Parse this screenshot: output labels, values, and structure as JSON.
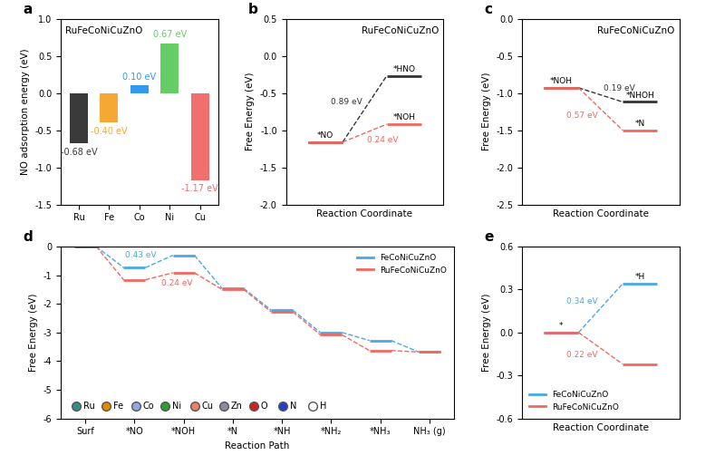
{
  "chart_data": [
    {
      "panel": "a",
      "type": "bar",
      "title": "RuFeCoNiCuZnO",
      "ylabel": "NO adsorption energy (eV)",
      "categories": [
        "Ru",
        "Fe",
        "Co",
        "Ni",
        "Cu"
      ],
      "values": [
        -0.68,
        -0.4,
        0.1,
        0.67,
        -1.17
      ],
      "value_labels": [
        "-0.68 eV",
        "-0.40 eV",
        "0.10 eV",
        "0.67 eV",
        "-1.17 eV"
      ],
      "colors": [
        "#3a3a3a",
        "#f5a833",
        "#3399ee",
        "#66cc66",
        "#f07070"
      ],
      "data_labels": true,
      "ylim": [
        -1.5,
        1.0
      ],
      "yticks": [
        -1.5,
        -1.0,
        -0.5,
        0.0,
        0.5,
        1.0
      ]
    },
    {
      "panel": "b",
      "type": "energy_diagram",
      "title": "RuFeCoNiCuZnO",
      "xlabel": "Reaction Coordinate",
      "ylabel": "Free Energy (eV)",
      "ylim": [
        -2.0,
        0.5
      ],
      "yticks": [
        -2.0,
        -1.5,
        -1.0,
        -0.5,
        0.0,
        0.5
      ],
      "tick_labels": "y",
      "series": [
        {
          "color": "#333333",
          "labels": [
            "*NO",
            "*HNO"
          ],
          "values": [
            -1.16,
            -0.27
          ],
          "annotation": "0.89 eV",
          "annotation_at": 1
        },
        {
          "color": "#f2685f",
          "labels": [
            "*NO",
            "*NOH"
          ],
          "values": [
            -1.16,
            -0.92
          ],
          "annotation": "0.24 eV",
          "annotation_at": 1
        }
      ]
    },
    {
      "panel": "c",
      "type": "energy_diagram",
      "title": "RuFeCoNiCuZnO",
      "xlabel": "Reaction Coordinate",
      "ylabel": "Free Energy (eV)",
      "ylim": [
        -2.5,
        0.0
      ],
      "yticks": [
        -2.5,
        -2.0,
        -1.5,
        -1.0,
        -0.5,
        0.0
      ],
      "tick_labels": "y",
      "series": [
        {
          "color": "#333333",
          "labels": [
            "*NOH",
            "*NHOH"
          ],
          "values": [
            -0.93,
            -1.12
          ],
          "annotation": "0.19 eV",
          "annotation_at": 1
        },
        {
          "color": "#f2685f",
          "labels": [
            "*NOH",
            "*N"
          ],
          "values": [
            -0.93,
            -1.5
          ],
          "annotation": "0.57 eV",
          "annotation_at": 1
        }
      ]
    },
    {
      "panel": "d",
      "type": "energy_diagram",
      "xlabel": "Reaction Path",
      "ylabel": "Free Energy (eV)",
      "categories": [
        "Surf",
        "*NO",
        "*NOH",
        "*N",
        "*NH",
        "*NH₂",
        "*NH₃",
        "NH₃ (g)"
      ],
      "ylim": [
        -6,
        0
      ],
      "yticks": [
        -6,
        -5,
        -4,
        -3,
        -2,
        -1,
        0
      ],
      "legend": "upper right",
      "series": [
        {
          "name": "FeCoNiCuZnO",
          "color": "#4aa8e8",
          "values": [
            0,
            -0.74,
            -0.31,
            -1.46,
            -2.22,
            -3.0,
            -3.28,
            -3.68
          ],
          "annotation": "0.43 eV",
          "annotation_at": 2
        },
        {
          "name": "RuFeCoNiCuZnO",
          "color": "#f2685f",
          "values": [
            0,
            -1.16,
            -0.92,
            -1.5,
            -2.28,
            -3.08,
            -3.63,
            -3.68
          ],
          "annotation": "0.24 eV",
          "annotation_at": 2
        }
      ],
      "atoms": [
        {
          "name": "Ru",
          "color": "#2f8f8f"
        },
        {
          "name": "Fe",
          "color": "#e08a00"
        },
        {
          "name": "Co",
          "color": "#8fa8e0"
        },
        {
          "name": "Ni",
          "color": "#2ca02c"
        },
        {
          "name": "Cu",
          "color": "#e8806a"
        },
        {
          "name": "Zn",
          "color": "#8c8c9c"
        },
        {
          "name": "O",
          "color": "#d62020"
        },
        {
          "name": "N",
          "color": "#1f3fd0"
        },
        {
          "name": "H",
          "color": "#ffffff"
        }
      ]
    },
    {
      "panel": "e",
      "type": "energy_diagram",
      "xlabel": "Reaction Coordinate",
      "ylabel": "Free Energy (eV)",
      "ylim": [
        -0.6,
        0.6
      ],
      "yticks": [
        -0.6,
        -0.3,
        0.0,
        0.3,
        0.6
      ],
      "tick_labels": "y",
      "legend": "lower left",
      "series": [
        {
          "name": "FeCoNiCuZnO",
          "color": "#4aa8e8",
          "labels": [
            "*",
            "*H"
          ],
          "values": [
            0,
            0.34
          ],
          "annotation": "0.34 eV",
          "annotation_at": 1
        },
        {
          "name": "RuFeCoNiCuZnO",
          "color": "#f2685f",
          "labels": [
            "*",
            "*H"
          ],
          "values": [
            0,
            -0.22
          ],
          "annotation": "0.22 eV",
          "annotation_at": 1
        }
      ]
    }
  ]
}
